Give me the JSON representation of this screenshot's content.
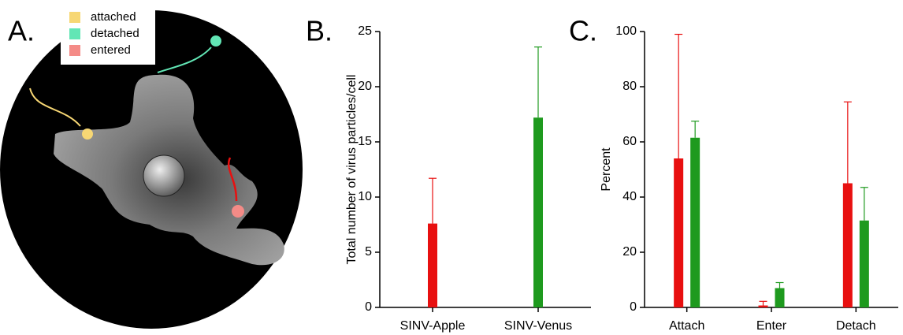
{
  "illustration": {
    "label": "A.",
    "legend": [
      {
        "name": "attached",
        "color": "#f7d774"
      },
      {
        "name": "detached",
        "color": "#62e6b5"
      },
      {
        "name": "entered",
        "color": "#f48b87"
      }
    ]
  },
  "chart_data": [
    {
      "type": "bar",
      "panel_label": "B.",
      "ylabel": "Total number of virus particles/cell",
      "categories": [
        "SINV-Apple",
        "SINV-Venus"
      ],
      "values": [
        7.6,
        17.2
      ],
      "errors": [
        4.1,
        6.4
      ],
      "colors": [
        "#e81010",
        "#1e9a1e"
      ],
      "ylim": [
        0,
        25
      ],
      "yticks": [
        0,
        5,
        10,
        15,
        20,
        25
      ]
    },
    {
      "type": "grouped-bar",
      "panel_label": "C.",
      "ylabel": "Percent",
      "categories": [
        "Attach",
        "Enter",
        "Detach"
      ],
      "series": [
        {
          "color": "#e81010",
          "values": [
            54,
            0.7,
            45
          ],
          "errors": [
            45,
            1.5,
            29.5
          ]
        },
        {
          "color": "#1e9a1e",
          "values": [
            61.5,
            7,
            31.5
          ],
          "errors": [
            6,
            2,
            12
          ]
        }
      ],
      "ylim": [
        0,
        100
      ],
      "yticks": [
        0,
        20,
        40,
        60,
        80,
        100
      ]
    }
  ]
}
